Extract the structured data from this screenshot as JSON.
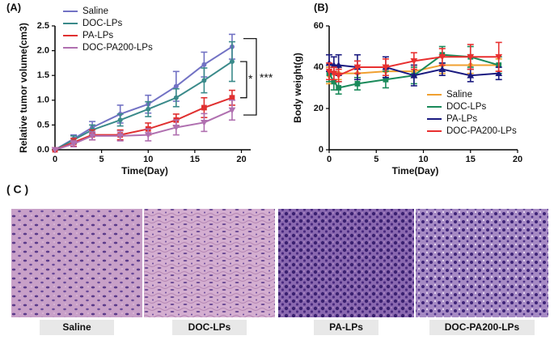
{
  "chart_data": [
    {
      "type": "line",
      "panel": "(A)",
      "xlabel": "Time(Day)",
      "ylabel": "Relative tumor volume(cm3)",
      "x": [
        0,
        2,
        4,
        7,
        10,
        13,
        16,
        19
      ],
      "xlim": [
        0,
        21
      ],
      "xticks": [
        0,
        5,
        10,
        15,
        20
      ],
      "ylim": [
        0,
        2.5
      ],
      "yticks": [
        {
          "value": 0,
          "label": "0.0"
        },
        0.5,
        {
          "value": 1,
          "label": "1.0"
        },
        1.5,
        {
          "value": 2,
          "label": "2.0"
        },
        2.5
      ],
      "legend": "upper left",
      "annotations": [
        "*",
        "***"
      ],
      "series": [
        {
          "name": "Saline",
          "color": "#7272c4",
          "marker": "circle",
          "values": [
            0,
            0.22,
            0.45,
            0.72,
            0.92,
            1.28,
            1.72,
            2.08
          ],
          "errors": [
            0,
            0.08,
            0.12,
            0.18,
            0.18,
            0.3,
            0.25,
            0.25
          ]
        },
        {
          "name": "DOC-LPs",
          "color": "#3a8a8a",
          "marker": "circle",
          "values": [
            0,
            0.2,
            0.4,
            0.6,
            0.82,
            1.05,
            1.4,
            1.78
          ],
          "errors": [
            0,
            0.08,
            0.1,
            0.12,
            0.15,
            0.18,
            0.25,
            0.4
          ]
        },
        {
          "name": "PA-LPs",
          "color": "#e03030",
          "marker": "square",
          "values": [
            0,
            0.15,
            0.3,
            0.3,
            0.42,
            0.6,
            0.85,
            1.05
          ],
          "errors": [
            0,
            0.08,
            0.1,
            0.1,
            0.12,
            0.12,
            0.2,
            0.15
          ]
        },
        {
          "name": "DOC-PA200-LPs",
          "color": "#b070b0",
          "marker": "triangle-down",
          "values": [
            0,
            0.12,
            0.28,
            0.28,
            0.3,
            0.45,
            0.55,
            0.8
          ],
          "errors": [
            0,
            0.06,
            0.08,
            0.1,
            0.12,
            0.15,
            0.18,
            0.2
          ]
        }
      ]
    },
    {
      "type": "line",
      "panel": "(B)",
      "xlabel": "Time(Day)",
      "ylabel": "Body weight(g)",
      "x": [
        0,
        0.5,
        1,
        3,
        6,
        9,
        12,
        15,
        18
      ],
      "xlim": [
        0,
        20
      ],
      "xticks": [
        0,
        5,
        10,
        15,
        20
      ],
      "ylim": [
        0,
        60
      ],
      "yticks": [
        0,
        20,
        40,
        60
      ],
      "legend": "lower right",
      "series": [
        {
          "name": "Saline",
          "color": "#f0a030",
          "marker": "circle",
          "values": [
            36,
            37,
            37,
            37,
            38,
            38,
            41,
            41,
            41
          ],
          "errors": [
            4,
            3,
            3,
            3,
            3,
            3,
            4,
            4,
            3
          ]
        },
        {
          "name": "DOC-LPs",
          "color": "#1a8a5a",
          "marker": "square",
          "values": [
            37,
            33,
            30,
            32,
            34,
            36,
            46,
            45,
            41
          ],
          "errors": [
            4,
            4,
            3,
            3,
            4,
            4,
            4,
            5,
            4
          ]
        },
        {
          "name": "PA-LPs",
          "color": "#1a1a80",
          "marker": "triangle",
          "values": [
            42,
            41,
            41,
            40,
            40,
            36,
            39,
            36,
            37
          ],
          "errors": [
            4,
            4,
            5,
            6,
            5,
            5,
            3,
            3,
            3
          ]
        },
        {
          "name": "DOC-PA200-LPs",
          "color": "#e83030",
          "marker": "triangle-down",
          "values": [
            38,
            37,
            36,
            40,
            40,
            43,
            45,
            45,
            45
          ],
          "errors": [
            4,
            3,
            3,
            3,
            4,
            4,
            4,
            6,
            7
          ]
        }
      ]
    }
  ],
  "panel_c": {
    "label": "( C )",
    "captions": [
      "Saline",
      "DOC-LPs",
      "PA-LPs",
      "DOC-PA200-LPs"
    ]
  }
}
